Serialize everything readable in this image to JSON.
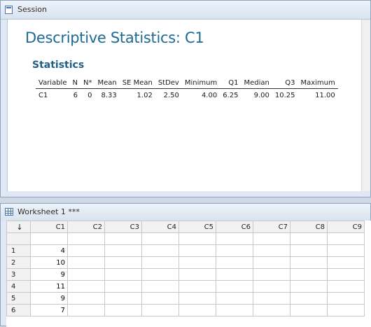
{
  "session": {
    "title": "Session",
    "output_title": "Descriptive Statistics: C1",
    "section": "Statistics",
    "columns": [
      "Variable",
      "N",
      "N*",
      "Mean",
      "SE Mean",
      "StDev",
      "Minimum",
      "Q1",
      "Median",
      "Q3",
      "Maximum"
    ],
    "row": [
      "C1",
      "6",
      "0",
      "8.33",
      "1.02",
      "2.50",
      "4.00",
      "6.25",
      "9.00",
      "10.25",
      "11.00"
    ]
  },
  "worksheet": {
    "title": "Worksheet 1 ***",
    "corner": "↓",
    "columns": [
      "C1",
      "C2",
      "C3",
      "C4",
      "C5",
      "C6",
      "C7",
      "C8",
      "C9"
    ],
    "rows": [
      {
        "num": "1",
        "c1": "4"
      },
      {
        "num": "2",
        "c1": "10"
      },
      {
        "num": "3",
        "c1": "9"
      },
      {
        "num": "4",
        "c1": "11"
      },
      {
        "num": "5",
        "c1": "9"
      },
      {
        "num": "6",
        "c1": "7"
      }
    ]
  }
}
